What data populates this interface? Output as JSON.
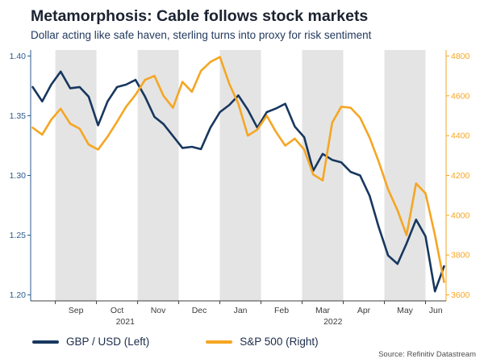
{
  "header": {
    "title": "Metamorphosis: Cable follows stock markets",
    "subtitle": "Dollar acting like safe haven, sterling turns into proxy for risk sentiment"
  },
  "source": "Source: Refinitiv Datastream",
  "chart_data": {
    "type": "line",
    "title": "Metamorphosis: Cable follows stock markets",
    "x_unit": "months since 2021-08-01 (weekly points, Aug 2021 - Jun 2022)",
    "x_range": [
      0.4,
      10.5
    ],
    "legend_position": "bottom-left",
    "grid": false,
    "months": [
      {
        "label": "",
        "start": 0.4,
        "end": 1,
        "shaded": false
      },
      {
        "label": "Sep",
        "start": 1,
        "end": 2,
        "shaded": true
      },
      {
        "label": "Oct",
        "start": 2,
        "end": 3,
        "shaded": false
      },
      {
        "label": "Nov",
        "start": 3,
        "end": 4,
        "shaded": true
      },
      {
        "label": "Dec",
        "start": 4,
        "end": 5,
        "shaded": false
      },
      {
        "label": "Jan",
        "start": 5,
        "end": 6,
        "shaded": true
      },
      {
        "label": "Feb",
        "start": 6,
        "end": 7,
        "shaded": false
      },
      {
        "label": "Mar",
        "start": 7,
        "end": 8,
        "shaded": true
      },
      {
        "label": "Apr",
        "start": 8,
        "end": 9,
        "shaded": false
      },
      {
        "label": "May",
        "start": 9,
        "end": 10,
        "shaded": true
      },
      {
        "label": "Jun",
        "start": 10,
        "end": 10.5,
        "shaded": false
      }
    ],
    "years": [
      {
        "label": "2021",
        "center": 2.7
      },
      {
        "label": "2022",
        "center": 7.75
      }
    ],
    "left_axis": {
      "label": "GBP / USD",
      "range": [
        1.195,
        1.405
      ],
      "ticks": [
        {
          "v": 1.2,
          "label": "1.20"
        },
        {
          "v": 1.25,
          "label": "1.25"
        },
        {
          "v": 1.3,
          "label": "1.30"
        },
        {
          "v": 1.35,
          "label": "1.35"
        },
        {
          "v": 1.4,
          "label": "1.40"
        }
      ]
    },
    "right_axis": {
      "label": "S&P 500",
      "range": [
        3570,
        4830
      ],
      "ticks": [
        {
          "v": 3600,
          "label": "3600"
        },
        {
          "v": 3800,
          "label": "3800"
        },
        {
          "v": 4000,
          "label": "4000"
        },
        {
          "v": 4200,
          "label": "4200"
        },
        {
          "v": 4400,
          "label": "4400"
        },
        {
          "v": 4600,
          "label": "4600"
        },
        {
          "v": 4800,
          "label": "4800"
        }
      ]
    },
    "x": [
      0.45,
      0.68,
      0.9,
      1.13,
      1.36,
      1.59,
      1.81,
      2.04,
      2.27,
      2.5,
      2.72,
      2.95,
      3.18,
      3.41,
      3.63,
      3.86,
      4.09,
      4.32,
      4.54,
      4.77,
      5.0,
      5.23,
      5.45,
      5.68,
      5.91,
      6.14,
      6.36,
      6.59,
      6.82,
      7.05,
      7.27,
      7.5,
      7.73,
      7.95,
      8.18,
      8.41,
      8.64,
      8.86,
      9.09,
      9.32,
      9.54,
      9.77,
      10.0,
      10.23,
      10.45
    ],
    "series": [
      {
        "name": "gbp-usd",
        "label": "GBP / USD (Left)",
        "axis": "left",
        "color": "#17375e",
        "values": [
          1.374,
          1.362,
          1.376,
          1.387,
          1.373,
          1.374,
          1.366,
          1.342,
          1.362,
          1.374,
          1.376,
          1.38,
          1.366,
          1.349,
          1.343,
          1.333,
          1.323,
          1.324,
          1.322,
          1.34,
          1.353,
          1.359,
          1.367,
          1.355,
          1.34,
          1.353,
          1.356,
          1.36,
          1.341,
          1.332,
          1.304,
          1.318,
          1.313,
          1.311,
          1.303,
          1.3,
          1.283,
          1.257,
          1.233,
          1.226,
          1.243,
          1.263,
          1.249,
          1.203,
          1.224
        ]
      },
      {
        "name": "sp500",
        "label": "S&P 500 (Right)",
        "axis": "right",
        "color": "#f5a623",
        "values": [
          4440,
          4405,
          4480,
          4535,
          4460,
          4435,
          4355,
          4330,
          4395,
          4470,
          4545,
          4605,
          4680,
          4700,
          4600,
          4540,
          4670,
          4620,
          4725,
          4770,
          4795,
          4660,
          4560,
          4400,
          4430,
          4500,
          4420,
          4350,
          4385,
          4330,
          4205,
          4175,
          4465,
          4545,
          4540,
          4490,
          4390,
          4270,
          4130,
          4025,
          3900,
          4160,
          4110,
          3900,
          3665
        ]
      }
    ],
    "colors": {
      "band": "#e4e4e4",
      "axis": "#404040",
      "left": "#2a5a8c",
      "right": "#f5a623",
      "text": "#3c3c3c"
    }
  }
}
